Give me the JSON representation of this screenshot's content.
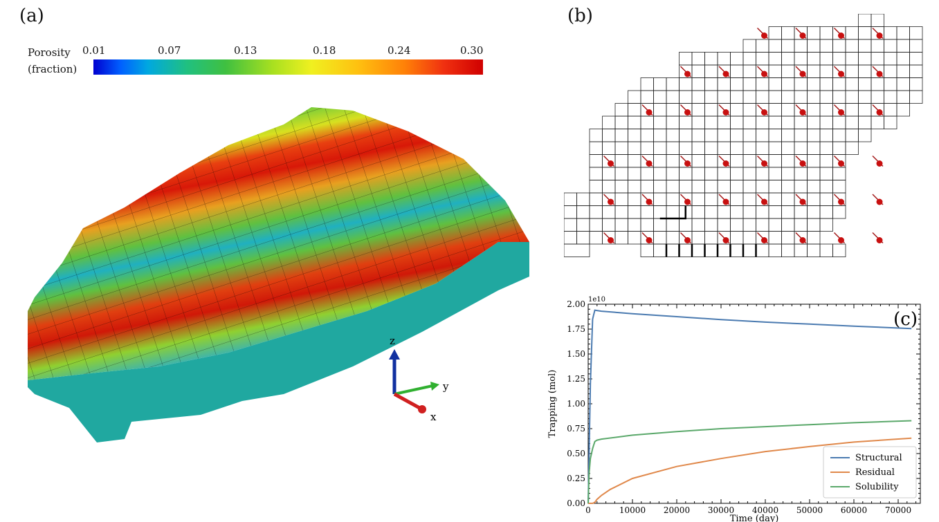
{
  "panels": {
    "a_label": "(a)",
    "b_label": "(b)"
  },
  "colorbar": {
    "title_line1": "Porosity",
    "title_line2": "(fraction)",
    "ticks": [
      "0.01",
      "0.07",
      "0.13",
      "0.18",
      "0.24",
      "0.30"
    ]
  },
  "axes_triad": {
    "x": "x",
    "y": "y",
    "z": "z"
  },
  "chart_data": {
    "type": "line",
    "panel_label": "(c)",
    "title": "",
    "xlabel": "Time (day)",
    "ylabel": "Trapping (mol)",
    "offset_text": "1e10",
    "xlim": [
      0,
      75000
    ],
    "ylim": [
      0,
      2.0
    ],
    "xticks": [
      0,
      10000,
      20000,
      30000,
      40000,
      50000,
      60000,
      70000
    ],
    "xtick_labels": [
      "0",
      "10000",
      "20000",
      "30000",
      "40000",
      "50000",
      "60000",
      "70000"
    ],
    "yticks": [
      0,
      0.25,
      0.5,
      0.75,
      1.0,
      1.25,
      1.5,
      1.75,
      2.0
    ],
    "ytick_labels": [
      "0.00",
      "0.25",
      "0.50",
      "0.75",
      "1.00",
      "1.25",
      "1.50",
      "1.75",
      "2.00"
    ],
    "grid": false,
    "legend_position": "lower-right",
    "series": [
      {
        "name": "Structural",
        "color": "#4a7ab0",
        "x": [
          0,
          500,
          1000,
          1500,
          3000,
          10000,
          20000,
          30000,
          40000,
          50000,
          60000,
          73000
        ],
        "y": [
          0,
          1.2,
          1.85,
          1.94,
          1.93,
          1.905,
          1.875,
          1.845,
          1.82,
          1.8,
          1.78,
          1.755
        ]
      },
      {
        "name": "Residual",
        "color": "#e0884a",
        "x": [
          0,
          1000,
          1500,
          2000,
          3000,
          5000,
          10000,
          20000,
          30000,
          40000,
          50000,
          60000,
          73000
        ],
        "y": [
          0,
          0,
          0.01,
          0.04,
          0.08,
          0.14,
          0.25,
          0.37,
          0.45,
          0.52,
          0.57,
          0.615,
          0.655
        ]
      },
      {
        "name": "Solubility",
        "color": "#5aa86a",
        "x": [
          0,
          200,
          500,
          1000,
          1500,
          2000,
          3000,
          10000,
          20000,
          30000,
          40000,
          50000,
          60000,
          73000
        ],
        "y": [
          0,
          0.3,
          0.45,
          0.55,
          0.62,
          0.635,
          0.645,
          0.685,
          0.72,
          0.75,
          0.77,
          0.79,
          0.81,
          0.83
        ]
      }
    ]
  }
}
